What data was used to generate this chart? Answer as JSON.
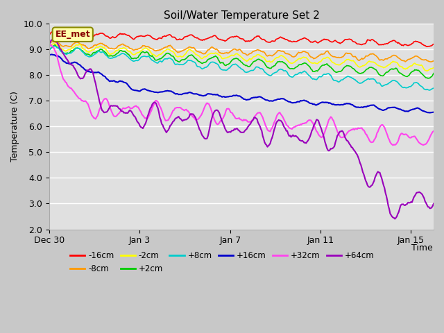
{
  "title": "Soil/Water Temperature Set 2",
  "xlabel": "Time",
  "ylabel": "Temperature (C)",
  "ylim": [
    2.0,
    10.0
  ],
  "yticks": [
    2.0,
    3.0,
    4.0,
    5.0,
    6.0,
    7.0,
    8.0,
    9.0,
    10.0
  ],
  "annotation": "EE_met",
  "fig_bg": "#d0d0d0",
  "plot_bg": "#e8e8e8",
  "series": [
    {
      "label": "-16cm",
      "color": "#ff0000"
    },
    {
      "label": "-8cm",
      "color": "#ff9900"
    },
    {
      "label": "-2cm",
      "color": "#ffff00"
    },
    {
      "label": "+2cm",
      "color": "#00cc00"
    },
    {
      "label": "+8cm",
      "color": "#00cccc"
    },
    {
      "label": "+16cm",
      "color": "#0000cc"
    },
    {
      "label": "+32cm",
      "color": "#ff44ee"
    },
    {
      "label": "+64cm",
      "color": "#9900bb"
    }
  ],
  "x_tick_labels": [
    "Dec 30",
    "Jan 3",
    "Jan 7",
    "Jan 11",
    "Jan 15"
  ],
  "x_tick_positions": [
    0,
    4,
    8,
    12,
    16
  ],
  "total_days": 17
}
